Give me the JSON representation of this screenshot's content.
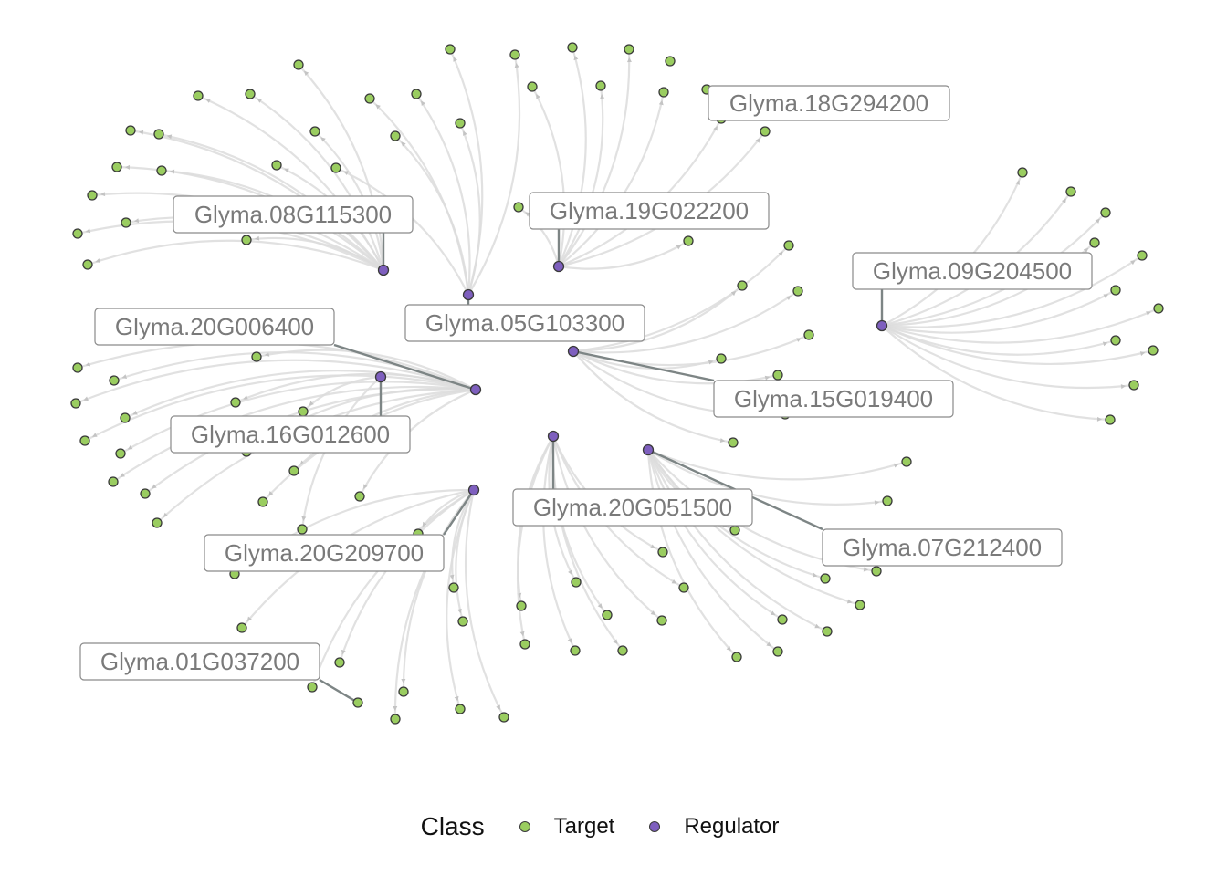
{
  "legend": {
    "title": "Class",
    "items": [
      {
        "label": "Target",
        "color": "#9acd60"
      },
      {
        "label": "Regulator",
        "color": "#7e5fbe"
      }
    ]
  },
  "regulators": [
    "Glyma.18G294200",
    "Glyma.08G115300",
    "Glyma.19G022200",
    "Glyma.09G204500",
    "Glyma.05G103300",
    "Glyma.20G006400",
    "Glyma.15G019400",
    "Glyma.16G012600",
    "Glyma.20G051500",
    "Glyma.07G212400",
    "Glyma.20G209700",
    "Glyma.01G037200"
  ]
}
